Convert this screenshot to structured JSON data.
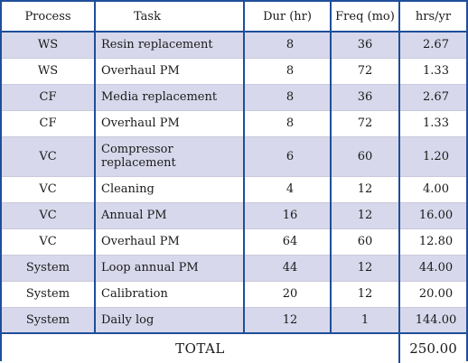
{
  "headers": {
    "process": "Process",
    "task": "Task",
    "dur": "Dur (hr)",
    "freq": "Freq (mo)",
    "hrs": "hrs/yr"
  },
  "rows": [
    {
      "process": "WS",
      "task": "Resin replacement",
      "dur": "8",
      "freq": "36",
      "hrs": "2.67"
    },
    {
      "process": "WS",
      "task": "Overhaul PM",
      "dur": "8",
      "freq": "72",
      "hrs": "1.33"
    },
    {
      "process": "CF",
      "task": "Media replacement",
      "dur": "8",
      "freq": "36",
      "hrs": "2.67"
    },
    {
      "process": "CF",
      "task": "Overhaul PM",
      "dur": "8",
      "freq": "72",
      "hrs": "1.33"
    },
    {
      "process": "VC",
      "task": "Compressor replacement",
      "dur": "6",
      "freq": "60",
      "hrs": "1.20"
    },
    {
      "process": "VC",
      "task": "Cleaning",
      "dur": "4",
      "freq": "12",
      "hrs": "4.00"
    },
    {
      "process": "VC",
      "task": "Annual PM",
      "dur": "16",
      "freq": "12",
      "hrs": "16.00"
    },
    {
      "process": "VC",
      "task": "Overhaul PM",
      "dur": "64",
      "freq": "60",
      "hrs": "12.80"
    },
    {
      "process": "System",
      "task": "Loop annual PM",
      "dur": "44",
      "freq": "12",
      "hrs": "44.00"
    },
    {
      "process": "System",
      "task": "Calibration",
      "dur": "20",
      "freq": "12",
      "hrs": "20.00"
    },
    {
      "process": "System",
      "task": "Daily log",
      "dur": "12",
      "freq": "1",
      "hrs": "144.00"
    }
  ],
  "total": {
    "label": "TOTAL",
    "value": "250.00"
  }
}
